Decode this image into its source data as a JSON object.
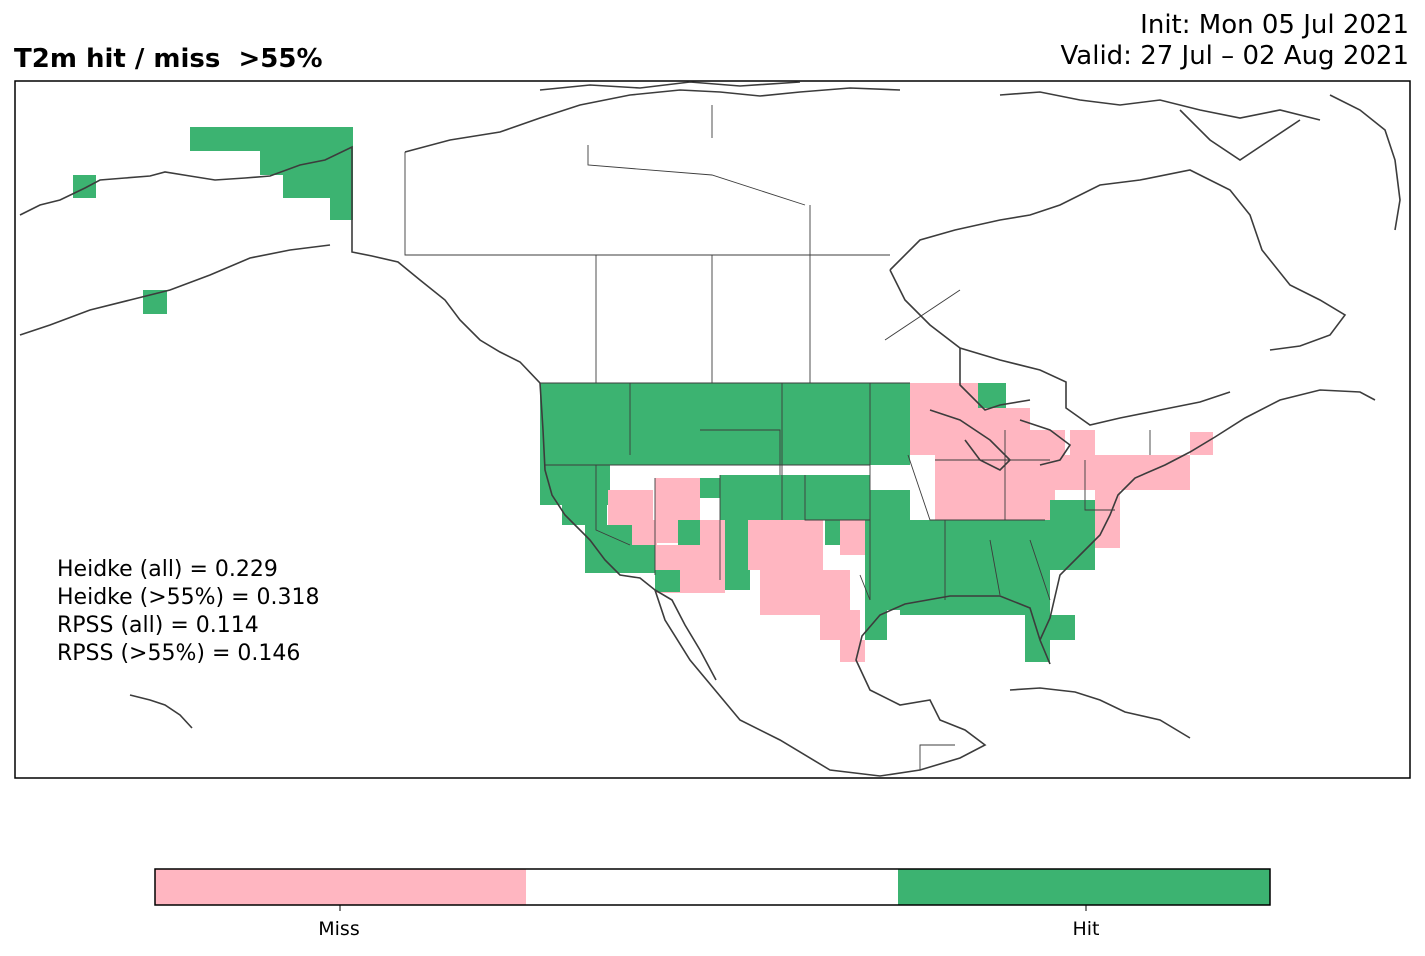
{
  "title": "T2m hit / miss  >55%",
  "init_line": "Init: Mon 05 Jul 2021",
  "valid_line": "Valid: 27 Jul – 02 Aug 2021",
  "stats": [
    "Heidke (all) = 0.229",
    "Heidke (>55%) = 0.318",
    "RPSS (all) = 0.114",
    "RPSS (>55%) = 0.146"
  ],
  "colorbar": {
    "labels": [
      "Miss",
      "Hit"
    ],
    "colors": [
      "#ffb6c1",
      "#ffffff",
      "#3cb371"
    ]
  },
  "colors": {
    "hit": "#3cb371",
    "miss": "#ffb6c1",
    "coast": "#3c3c3c",
    "frame": "#000000"
  }
}
